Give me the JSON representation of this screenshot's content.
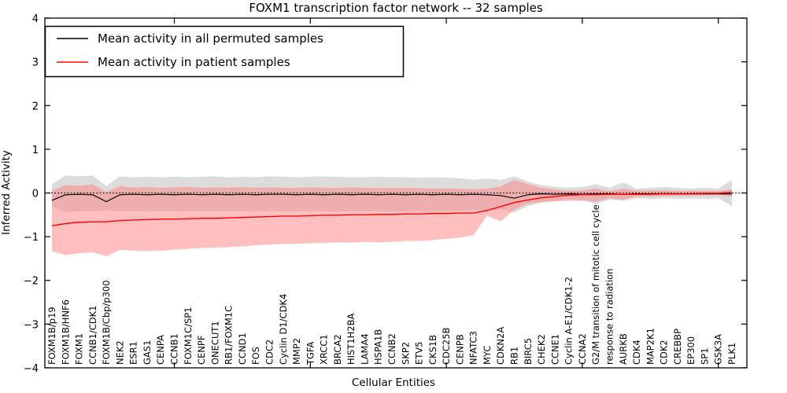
{
  "figure": {
    "title": "FOXM1 transcription factor network -- 32 samples",
    "xlabel": "Cellular Entities",
    "ylabel": "Inferred Activity"
  },
  "legend": {
    "entries": [
      {
        "label": "Mean activity in all permuted samples",
        "color": "#000000"
      },
      {
        "label": "Mean activity in patient samples",
        "color": "#ff0000"
      }
    ]
  },
  "chart_data": {
    "type": "line",
    "title": "FOXM1 transcription factor network -- 32 samples",
    "xlabel": "Cellular Entities",
    "ylabel": "Inferred Activity",
    "ylim": [
      -4,
      4
    ],
    "yticks": [
      4,
      3,
      2,
      1,
      0,
      -1,
      -2,
      -3,
      -4
    ],
    "xtick_positions": [
      9,
      19,
      29,
      39,
      49
    ],
    "grid": false,
    "zero_line": "dotted",
    "legend_position": "upper left",
    "categories": [
      "FOXM1B/p19",
      "FOXM1B/HNF6",
      "FOXM1",
      "CCNB1/CDK1",
      "FOXM1B/Cbp/p300",
      "NEK2",
      "ESR1",
      "GAS1",
      "CENPA",
      "CCNB1",
      "FOXM1C/SP1",
      "CENPF",
      "ONECUT1",
      "RB1/FOXM1C",
      "CCND1",
      "FOS",
      "CDC2",
      "Cyclin D1/CDK4",
      "MMP2",
      "TGFA",
      "XRCC1",
      "BRCA2",
      "HIST1H2BA",
      "LAMA4",
      "HSPA1B",
      "CCNB2",
      "SKP2",
      "ETV5",
      "CKS1B",
      "CDC25B",
      "CENPB",
      "NFATC3",
      "MYC",
      "CDKN2A",
      "RB1",
      "BIRC5",
      "CHEK2",
      "CCNE1",
      "Cyclin A-E1/CDK1-2",
      "CCNA2",
      "G2/M transition of mitotic cell cycle",
      "response to radiation",
      "AURKB",
      "CDK4",
      "MAP2K1",
      "CDK2",
      "CREBBP",
      "EP300",
      "SP1",
      "GSK3A",
      "PLK1"
    ],
    "series": [
      {
        "name": "Mean activity in all permuted samples",
        "color": "#000000",
        "values": [
          -0.17,
          -0.04,
          -0.03,
          -0.04,
          -0.2,
          -0.04,
          -0.03,
          -0.04,
          -0.03,
          -0.04,
          -0.03,
          -0.04,
          -0.03,
          -0.04,
          -0.03,
          -0.04,
          -0.03,
          -0.03,
          -0.04,
          -0.03,
          -0.04,
          -0.03,
          -0.04,
          -0.03,
          -0.04,
          -0.03,
          -0.04,
          -0.03,
          -0.04,
          -0.03,
          -0.04,
          -0.03,
          -0.04,
          -0.06,
          -0.12,
          -0.04,
          -0.02,
          -0.03,
          -0.02,
          -0.03,
          -0.02,
          -0.02,
          -0.03,
          -0.02,
          -0.02,
          -0.02,
          -0.02,
          -0.02,
          -0.02,
          -0.02,
          -0.02
        ]
      },
      {
        "name": "Mean activity in patient samples",
        "color": "#ff0000",
        "values": [
          -0.75,
          -0.7,
          -0.67,
          -0.66,
          -0.66,
          -0.63,
          -0.62,
          -0.61,
          -0.6,
          -0.6,
          -0.59,
          -0.58,
          -0.58,
          -0.57,
          -0.56,
          -0.55,
          -0.54,
          -0.53,
          -0.53,
          -0.52,
          -0.51,
          -0.51,
          -0.5,
          -0.5,
          -0.49,
          -0.49,
          -0.48,
          -0.48,
          -0.47,
          -0.47,
          -0.46,
          -0.46,
          -0.4,
          -0.31,
          -0.22,
          -0.16,
          -0.11,
          -0.08,
          -0.05,
          -0.04,
          -0.04,
          -0.03,
          -0.03,
          -0.03,
          -0.03,
          -0.02,
          -0.02,
          -0.02,
          -0.01,
          -0.01,
          0.02
        ]
      }
    ],
    "bands": [
      {
        "name": "permuted-samples-std-band",
        "color": "#bfbfbf",
        "opacity": 0.55,
        "upper": [
          0.2,
          0.4,
          0.38,
          0.4,
          0.16,
          0.38,
          0.36,
          0.37,
          0.36,
          0.37,
          0.36,
          0.37,
          0.38,
          0.36,
          0.37,
          0.36,
          0.38,
          0.37,
          0.36,
          0.37,
          0.38,
          0.37,
          0.36,
          0.36,
          0.37,
          0.36,
          0.36,
          0.35,
          0.36,
          0.35,
          0.34,
          0.3,
          0.33,
          0.3,
          0.38,
          0.26,
          0.18,
          0.14,
          0.12,
          0.14,
          0.2,
          0.12,
          0.24,
          0.1,
          0.12,
          0.14,
          0.12,
          0.1,
          0.12,
          0.1,
          0.3
        ],
        "lower": [
          -0.3,
          -0.44,
          -0.42,
          -0.42,
          -0.4,
          -0.42,
          -0.42,
          -0.42,
          -0.42,
          -0.42,
          -0.42,
          -0.42,
          -0.42,
          -0.42,
          -0.42,
          -0.42,
          -0.42,
          -0.42,
          -0.42,
          -0.42,
          -0.42,
          -0.42,
          -0.42,
          -0.42,
          -0.42,
          -0.42,
          -0.42,
          -0.41,
          -0.42,
          -0.41,
          -0.4,
          -0.38,
          -0.4,
          -0.38,
          -0.45,
          -0.3,
          -0.22,
          -0.18,
          -0.15,
          -0.16,
          -0.25,
          -0.15,
          -0.18,
          -0.12,
          -0.14,
          -0.12,
          -0.14,
          -0.12,
          -0.14,
          -0.12,
          -0.3
        ]
      },
      {
        "name": "patient-samples-std-band",
        "color": "#ff7f7f",
        "opacity": 0.5,
        "upper": [
          0.05,
          0.18,
          0.16,
          0.2,
          0.02,
          0.16,
          0.12,
          0.14,
          0.12,
          0.13,
          0.14,
          0.12,
          0.13,
          0.12,
          0.14,
          0.12,
          0.13,
          0.12,
          0.12,
          0.13,
          0.12,
          0.12,
          0.13,
          0.12,
          0.12,
          0.11,
          0.12,
          0.11,
          0.1,
          0.11,
          0.1,
          0.08,
          0.1,
          0.15,
          0.3,
          0.2,
          0.12,
          0.08,
          0.05,
          0.06,
          0.1,
          0.04,
          0.1,
          0.05,
          0.06,
          0.06,
          0.05,
          0.05,
          0.05,
          0.05,
          0.08
        ],
        "lower": [
          -1.33,
          -1.42,
          -1.38,
          -1.36,
          -1.45,
          -1.3,
          -1.32,
          -1.33,
          -1.32,
          -1.3,
          -1.28,
          -1.26,
          -1.25,
          -1.24,
          -1.22,
          -1.2,
          -1.18,
          -1.17,
          -1.16,
          -1.15,
          -1.14,
          -1.13,
          -1.14,
          -1.12,
          -1.13,
          -1.12,
          -1.1,
          -1.1,
          -1.08,
          -1.05,
          -1.02,
          -0.97,
          -0.52,
          -0.65,
          -0.38,
          -0.24,
          -0.21,
          -0.19,
          -0.18,
          -0.18,
          -0.2,
          -0.12,
          -0.15,
          -0.08,
          -0.08,
          -0.07,
          -0.06,
          -0.06,
          -0.05,
          -0.05,
          -0.08
        ]
      }
    ]
  }
}
